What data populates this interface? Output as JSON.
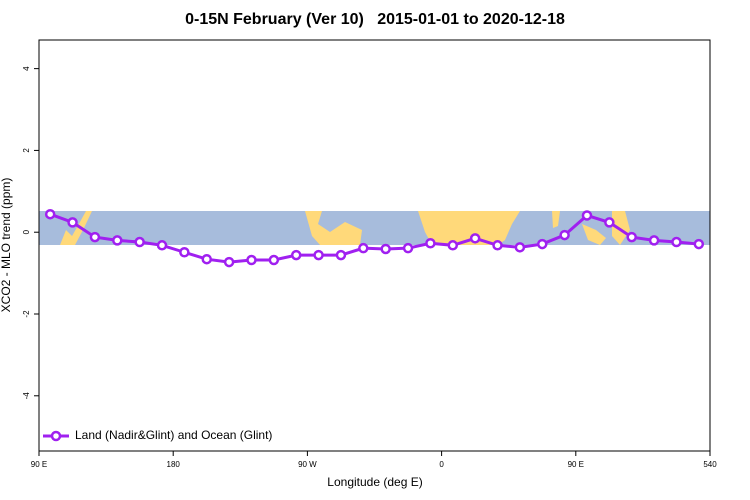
{
  "chart_data": {
    "type": "line",
    "title": "0-15N February (Ver 10)   2015-01-01 to 2020-12-18",
    "x_label": "Longitude (deg E)",
    "y_label": "XCO2 - MLO trend (ppm)",
    "xlim": [
      90,
      540
    ],
    "ylim": [
      -5.35,
      4.7
    ],
    "xticks": [
      {
        "value": 90,
        "label": "90 E"
      },
      180,
      {
        "value": 270,
        "label": "90 W"
      },
      {
        "value": 360,
        "label": "0"
      },
      {
        "value": 450,
        "label": "90 E"
      },
      540
    ],
    "yticks": [
      -4,
      -2,
      0,
      2,
      4
    ],
    "legend_position": "bottom-left",
    "x": [
      97.5,
      112.5,
      127.5,
      142.5,
      157.5,
      172.5,
      187.5,
      202.5,
      217.5,
      232.5,
      247.5,
      262.5,
      277.5,
      292.5,
      307.5,
      322.5,
      337.5,
      352.5,
      367.5,
      382.5,
      397.5,
      412.5,
      427.5,
      442.5,
      457.5,
      472.5,
      487.5,
      502.5,
      517.5,
      532.5
    ],
    "series": [
      {
        "name": "Land (Nadir&Glint) and Ocean (Glint)",
        "color": "#a020f0",
        "values": [
          0.44,
          0.24,
          -0.12,
          -0.2,
          -0.24,
          -0.32,
          -0.49,
          -0.66,
          -0.73,
          -0.68,
          -0.68,
          -0.56,
          -0.56,
          -0.56,
          -0.39,
          -0.41,
          -0.39,
          -0.27,
          -0.32,
          -0.15,
          -0.32,
          -0.37,
          -0.29,
          -0.07,
          0.41,
          0.24,
          -0.12,
          -0.2,
          -0.24,
          -0.29
        ]
      }
    ]
  }
}
